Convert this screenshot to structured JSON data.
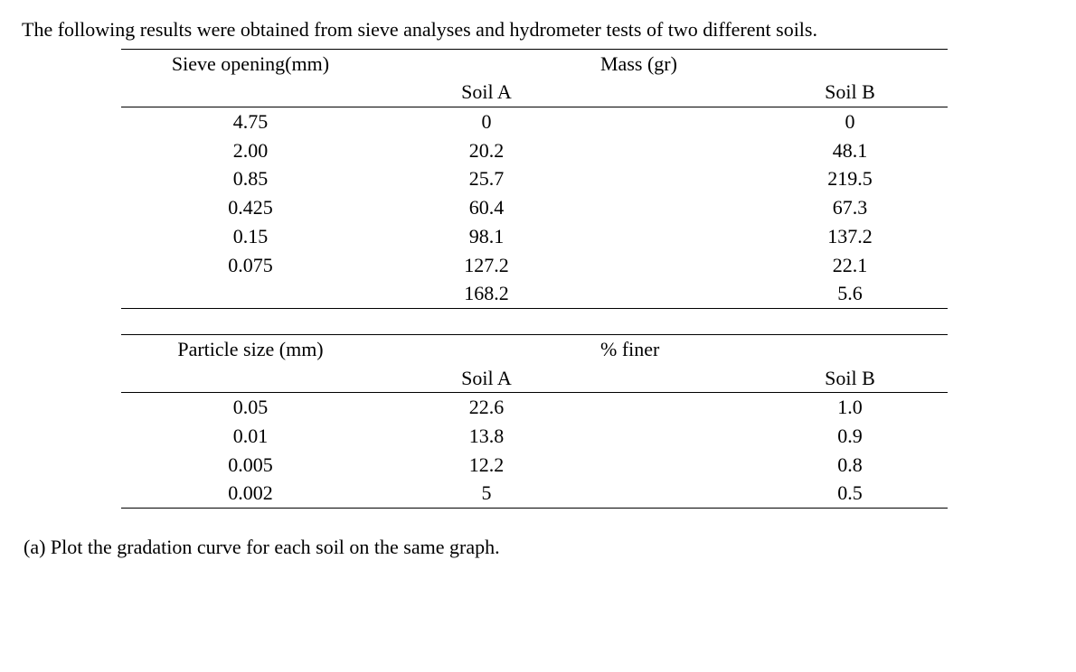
{
  "intro": "The following results were obtained from sieve analyses and hydrometer tests of two different soils.",
  "table1": {
    "header_left": "Sieve opening(mm)",
    "header_right": "Mass (gr)",
    "sub_a": "Soil A",
    "sub_b": "Soil B",
    "rows": [
      {
        "sieve": "4.75",
        "a": "0",
        "b": "0"
      },
      {
        "sieve": "2.00",
        "a": "20.2",
        "b": "48.1"
      },
      {
        "sieve": "0.85",
        "a": "25.7",
        "b": "219.5"
      },
      {
        "sieve": "0.425",
        "a": "60.4",
        "b": "67.3"
      },
      {
        "sieve": "0.15",
        "a": "98.1",
        "b": "137.2"
      },
      {
        "sieve": "0.075",
        "a": "127.2",
        "b": "22.1"
      },
      {
        "sieve": "",
        "a": "168.2",
        "b": "5.6"
      }
    ]
  },
  "table2": {
    "header_left": "Particle size (mm)",
    "header_right": "% finer",
    "sub_a": "Soil A",
    "sub_b": "Soil B",
    "rows": [
      {
        "size": "0.05",
        "a": "22.6",
        "b": "1.0"
      },
      {
        "size": "0.01",
        "a": "13.8",
        "b": "0.9"
      },
      {
        "size": "0.005",
        "a": "12.2",
        "b": "0.8"
      },
      {
        "size": "0.002",
        "a": "5",
        "b": "0.5"
      }
    ]
  },
  "part_a": "(a) Plot the gradation curve for each soil on the same graph."
}
